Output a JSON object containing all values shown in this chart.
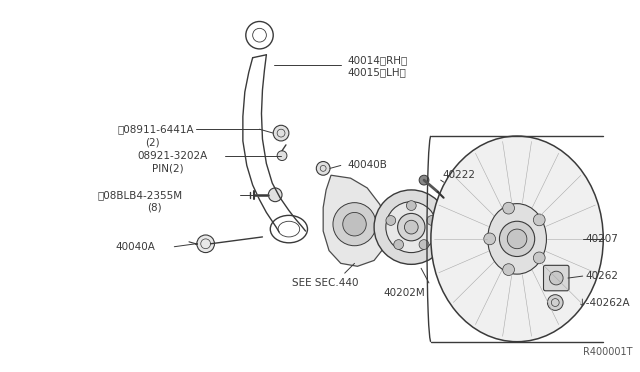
{
  "bg_color": "#ffffff",
  "dark": "#3a3a3a",
  "gray": "#888888",
  "light_gray": "#cccccc",
  "ref_text": "R400001T",
  "labels": {
    "N_part": "ⓝ08911-6441A",
    "N_sub": "(2)",
    "pin_part": "08921-3202A",
    "pin_sub": "PIN(2)",
    "B_part": "Ⓒ08BLB4-2355M",
    "B_sub": "(8)",
    "rh_lh_1": "40014〈RH〉",
    "rh_lh_2": "40015〈LH〉",
    "part_40040B": "40040B",
    "part_40222": "40222",
    "part_40040A": "40040A",
    "see_sec": "SEE SEC.440",
    "part_40202M": "40202M",
    "part_40207": "40207",
    "part_40262": "40262",
    "part_40262A": "↓-40262A"
  }
}
